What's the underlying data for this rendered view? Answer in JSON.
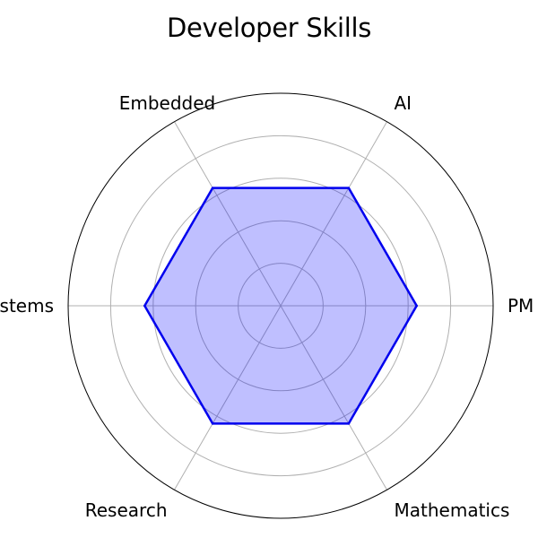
{
  "chart_data": {
    "type": "radar",
    "title": "Developer Skills",
    "categories": [
      "PM",
      "AI",
      "Embedded",
      "Systems",
      "Research",
      "Mathematics"
    ],
    "series": [
      {
        "values": [
          3.2,
          3.2,
          3.2,
          3.2,
          3.2,
          3.2
        ]
      }
    ],
    "rlim": [
      0,
      5
    ],
    "rings": [
      1,
      2,
      3,
      4
    ],
    "grid": true,
    "legend": "none",
    "colors": {
      "line": "#0000ee",
      "fill": "#0000ff",
      "fill_opacity": 0.25,
      "grid": "#b0b0b0",
      "outer_ring": "#000000"
    }
  }
}
